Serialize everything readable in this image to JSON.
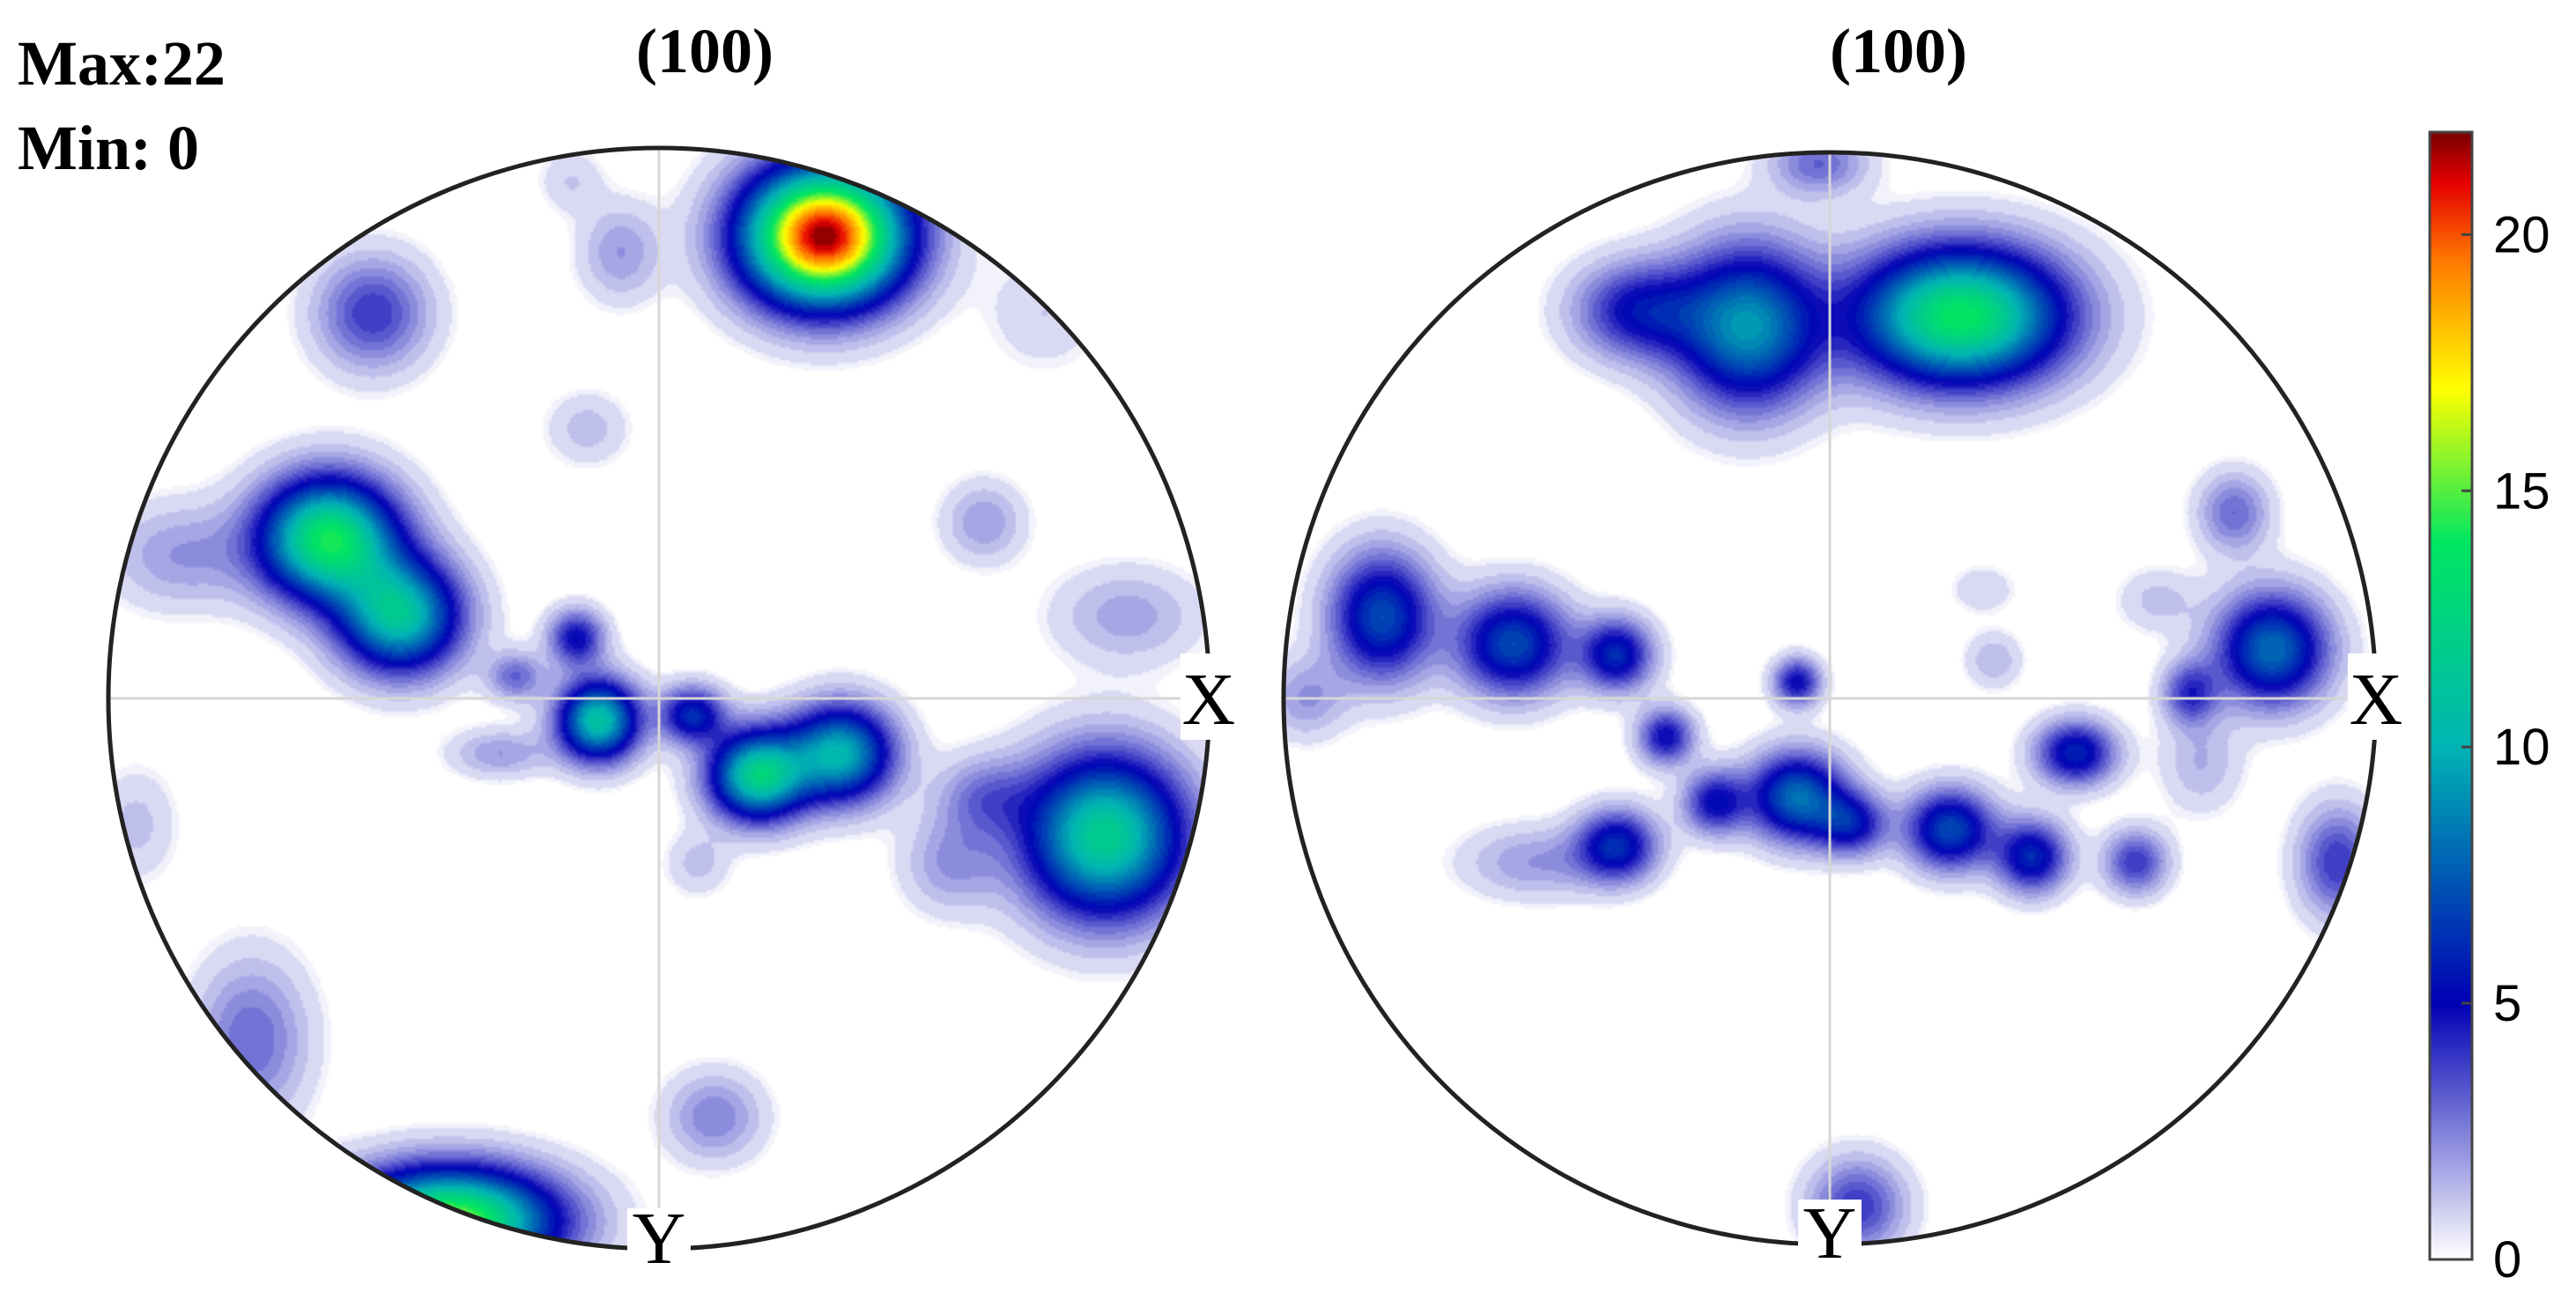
{
  "header": {
    "max_label": "Max:22",
    "min_label": "Min: 0"
  },
  "chart_data": [
    {
      "type": "heatmap",
      "title": "(100)",
      "axis_labels": {
        "x": "X",
        "y": "Y"
      },
      "projection": "pole figure",
      "grid": true,
      "poles": [
        {
          "x": 0.3,
          "y": 0.84,
          "value": 22,
          "sx": 0.1,
          "sy": 0.085
        },
        {
          "x": -0.6,
          "y": 0.29,
          "value": 14,
          "sx": 0.085,
          "sy": 0.075
        },
        {
          "x": -0.47,
          "y": 0.15,
          "value": 11,
          "sx": 0.075,
          "sy": 0.07
        },
        {
          "x": 0.81,
          "y": -0.25,
          "value": 12,
          "sx": 0.1,
          "sy": 0.1
        },
        {
          "x": -0.38,
          "y": -0.95,
          "value": 16,
          "sx": 0.13,
          "sy": 0.065
        },
        {
          "x": -0.11,
          "y": -0.04,
          "value": 11,
          "sx": 0.05,
          "sy": 0.05
        },
        {
          "x": 0.18,
          "y": -0.14,
          "value": 12,
          "sx": 0.06,
          "sy": 0.055
        },
        {
          "x": 0.33,
          "y": -0.1,
          "value": 10,
          "sx": 0.065,
          "sy": 0.06
        },
        {
          "x": 0.06,
          "y": -0.03,
          "value": 6,
          "sx": 0.04,
          "sy": 0.035
        },
        {
          "x": -0.15,
          "y": 0.11,
          "value": 5,
          "sx": 0.035,
          "sy": 0.035
        },
        {
          "x": -0.26,
          "y": 0.04,
          "value": 3,
          "sx": 0.035,
          "sy": 0.03
        },
        {
          "x": -0.29,
          "y": -0.1,
          "value": 2,
          "sx": 0.06,
          "sy": 0.03
        },
        {
          "x": -0.52,
          "y": 0.7,
          "value": 4,
          "sx": 0.07,
          "sy": 0.07
        },
        {
          "x": -0.87,
          "y": 0.26,
          "value": 2,
          "sx": 0.09,
          "sy": 0.065
        },
        {
          "x": 0.59,
          "y": 0.32,
          "value": 2,
          "sx": 0.05,
          "sy": 0.05
        },
        {
          "x": 0.85,
          "y": 0.15,
          "value": 1.8,
          "sx": 0.09,
          "sy": 0.06
        },
        {
          "x": 0.59,
          "y": -0.18,
          "value": 2.5,
          "sx": 0.06,
          "sy": 0.05
        },
        {
          "x": 0.53,
          "y": -0.3,
          "value": 2,
          "sx": 0.06,
          "sy": 0.06
        },
        {
          "x": -0.74,
          "y": -0.62,
          "value": 3,
          "sx": 0.07,
          "sy": 0.1
        },
        {
          "x": 0.1,
          "y": -0.76,
          "value": 2.5,
          "sx": 0.06,
          "sy": 0.055
        },
        {
          "x": -0.13,
          "y": 0.49,
          "value": 1.3,
          "sx": 0.05,
          "sy": 0.045
        },
        {
          "x": -0.07,
          "y": 0.81,
          "value": 2,
          "sx": 0.05,
          "sy": 0.06
        },
        {
          "x": 0.07,
          "y": -0.3,
          "value": 1.2,
          "sx": 0.04,
          "sy": 0.04
        },
        {
          "x": 0.47,
          "y": 0.99,
          "value": 1.2,
          "sx": 0.07,
          "sy": 0.04
        },
        {
          "x": 0.7,
          "y": 0.7,
          "value": 1.0,
          "sx": 0.07,
          "sy": 0.07
        },
        {
          "x": -0.95,
          "y": -0.23,
          "value": 1.2,
          "sx": 0.05,
          "sy": 0.07
        },
        {
          "x": -0.16,
          "y": 0.94,
          "value": 1.0,
          "sx": 0.04,
          "sy": 0.04
        }
      ]
    },
    {
      "type": "heatmap",
      "title": "(100)",
      "axis_labels": {
        "x": "X",
        "y": "Y"
      },
      "projection": "pole figure",
      "grid": true,
      "poles": [
        {
          "x": 0.24,
          "y": 0.7,
          "value": 14,
          "sx": 0.13,
          "sy": 0.085
        },
        {
          "x": -0.15,
          "y": 0.68,
          "value": 9,
          "sx": 0.09,
          "sy": 0.1
        },
        {
          "x": -0.35,
          "y": 0.71,
          "value": 5,
          "sx": 0.08,
          "sy": 0.06
        },
        {
          "x": -0.02,
          "y": 0.98,
          "value": 3,
          "sx": 0.06,
          "sy": 0.04
        },
        {
          "x": -0.82,
          "y": 0.15,
          "value": 7,
          "sx": 0.065,
          "sy": 0.08
        },
        {
          "x": -0.58,
          "y": 0.1,
          "value": 7,
          "sx": 0.07,
          "sy": 0.065
        },
        {
          "x": -0.39,
          "y": 0.08,
          "value": 6,
          "sx": 0.045,
          "sy": 0.045
        },
        {
          "x": -0.06,
          "y": -0.18,
          "value": 8,
          "sx": 0.06,
          "sy": 0.055
        },
        {
          "x": 0.04,
          "y": -0.23,
          "value": 5,
          "sx": 0.045,
          "sy": 0.04
        },
        {
          "x": -0.21,
          "y": -0.19,
          "value": 5,
          "sx": 0.04,
          "sy": 0.04
        },
        {
          "x": -0.3,
          "y": -0.07,
          "value": 5,
          "sx": 0.035,
          "sy": 0.035
        },
        {
          "x": -0.06,
          "y": 0.03,
          "value": 5,
          "sx": 0.03,
          "sy": 0.03
        },
        {
          "x": 0.22,
          "y": -0.24,
          "value": 7,
          "sx": 0.055,
          "sy": 0.05
        },
        {
          "x": 0.37,
          "y": -0.29,
          "value": 6,
          "sx": 0.045,
          "sy": 0.045
        },
        {
          "x": 0.45,
          "y": -0.1,
          "value": 6,
          "sx": 0.05,
          "sy": 0.04
        },
        {
          "x": 0.56,
          "y": -0.3,
          "value": 4,
          "sx": 0.04,
          "sy": 0.04
        },
        {
          "x": -0.39,
          "y": -0.27,
          "value": 6,
          "sx": 0.05,
          "sy": 0.045
        },
        {
          "x": -0.54,
          "y": -0.3,
          "value": 2,
          "sx": 0.09,
          "sy": 0.045
        },
        {
          "x": 0.81,
          "y": 0.09,
          "value": 8,
          "sx": 0.07,
          "sy": 0.07
        },
        {
          "x": 0.66,
          "y": 0.01,
          "value": 4,
          "sx": 0.035,
          "sy": 0.04
        },
        {
          "x": 0.74,
          "y": 0.34,
          "value": 3,
          "sx": 0.045,
          "sy": 0.05
        },
        {
          "x": 0.3,
          "y": 0.07,
          "value": 1.5,
          "sx": 0.035,
          "sy": 0.035
        },
        {
          "x": 0.93,
          "y": -0.3,
          "value": 4,
          "sx": 0.05,
          "sy": 0.07
        },
        {
          "x": 0.05,
          "y": -0.93,
          "value": 4,
          "sx": 0.06,
          "sy": 0.06
        },
        {
          "x": 0.68,
          "y": -0.12,
          "value": 1.5,
          "sx": 0.05,
          "sy": 0.06
        },
        {
          "x": -0.96,
          "y": 0.0,
          "value": 2,
          "sx": 0.05,
          "sy": 0.05
        },
        {
          "x": 0.28,
          "y": 0.2,
          "value": 1.0,
          "sx": 0.04,
          "sy": 0.03
        },
        {
          "x": 0.6,
          "y": 0.18,
          "value": 1.2,
          "sx": 0.05,
          "sy": 0.04
        }
      ]
    }
  ],
  "colorbar": {
    "ticks": [
      "0",
      "5",
      "10",
      "15",
      "20"
    ],
    "tick_values": [
      0,
      5,
      10,
      15,
      20
    ],
    "range": [
      0,
      22
    ],
    "colors": [
      "#ffffff",
      "#0000b4",
      "#00b4b4",
      "#00e660",
      "#ffff00",
      "#ff7800",
      "#e60000",
      "#780000"
    ],
    "color_stops": [
      0,
      5,
      10,
      14,
      17,
      19.5,
      21,
      22
    ]
  }
}
